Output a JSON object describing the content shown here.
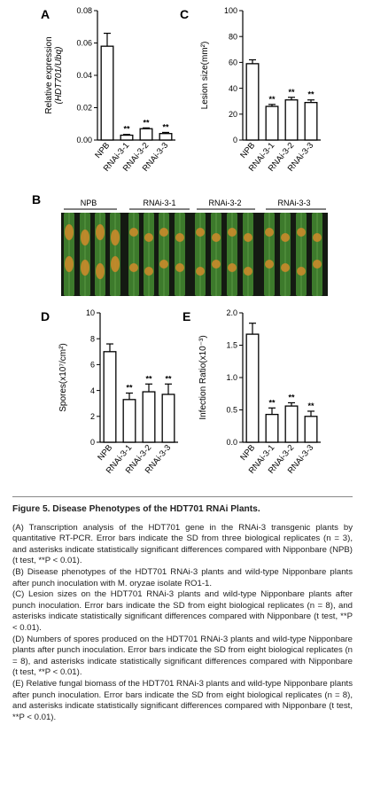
{
  "figure": {
    "panels": {
      "A": "A",
      "B": "B",
      "C": "C",
      "D": "D",
      "E": "E"
    },
    "photo_groups": [
      "NPB",
      "RNAi-3-1",
      "RNAi-3-2",
      "RNAi-3-3"
    ],
    "colors": {
      "bar_fill": "#ffffff",
      "bar_stroke": "#000000",
      "leaf_green": "#3d7a2c",
      "lesion": "#c98a2a"
    }
  },
  "chart_data": [
    {
      "id": "A",
      "type": "bar",
      "categories": [
        "NPB",
        "RNAi-3-1",
        "RNAi-3-2",
        "RNAi-3-3"
      ],
      "values": [
        0.058,
        0.003,
        0.007,
        0.004
      ],
      "errors": [
        0.008,
        0.0005,
        0.0005,
        0.0007
      ],
      "significance": [
        "",
        "**",
        "**",
        "**"
      ],
      "ylabel_line1": "Relative expression",
      "ylabel_line2": "(HDT701/Ubq)",
      "ylim": [
        0,
        0.08
      ],
      "yticks": [
        "0.00",
        "0.02",
        "0.04",
        "0.06",
        "0.08"
      ],
      "ytick_values": [
        0,
        0.02,
        0.04,
        0.06,
        0.08
      ]
    },
    {
      "id": "C",
      "type": "bar",
      "categories": [
        "NPB",
        "RNAi-3-1",
        "RNAi-3-2",
        "RNAi-3-3"
      ],
      "values": [
        59,
        26,
        31,
        29
      ],
      "errors": [
        3,
        1.5,
        2,
        2
      ],
      "significance": [
        "",
        "**",
        "**",
        "**"
      ],
      "ylabel_line1": "Lesion size(mm²)",
      "ylim": [
        0,
        100
      ],
      "yticks": [
        "0",
        "20",
        "40",
        "60",
        "80",
        "100"
      ],
      "ytick_values": [
        0,
        20,
        40,
        60,
        80,
        100
      ]
    },
    {
      "id": "D",
      "type": "bar",
      "categories": [
        "NPB",
        "RNAi-3-1",
        "RNAi-3-2",
        "RNAi-3-3"
      ],
      "values": [
        7.0,
        3.3,
        3.9,
        3.7
      ],
      "errors": [
        0.6,
        0.5,
        0.6,
        0.8
      ],
      "significance": [
        "",
        "**",
        "**",
        "**"
      ],
      "ylabel_line1": "Spores(x10⁷/cm²)",
      "ylim": [
        0,
        10
      ],
      "yticks": [
        "0",
        "2",
        "4",
        "6",
        "8",
        "10"
      ],
      "ytick_values": [
        0,
        2,
        4,
        6,
        8,
        10
      ]
    },
    {
      "id": "E",
      "type": "bar",
      "categories": [
        "NPB",
        "RNAi-3-1",
        "RNAi-3-2",
        "RNAi-3-3"
      ],
      "values": [
        1.67,
        0.43,
        0.56,
        0.4
      ],
      "errors": [
        0.17,
        0.1,
        0.05,
        0.08
      ],
      "significance": [
        "",
        "**",
        "**",
        "**"
      ],
      "ylabel_line1": "Infection Ratio(x10⁻³)",
      "ylim": [
        0,
        2.0
      ],
      "yticks": [
        "0.0",
        "0.5",
        "1.0",
        "1.5",
        "2.0"
      ],
      "ytick_values": [
        0,
        0.5,
        1.0,
        1.5,
        2.0
      ]
    }
  ],
  "caption": {
    "title": "Figure 5. Disease Phenotypes of the HDT701 RNAi Plants.",
    "A": "(A) Transcription analysis of the HDT701 gene in the RNAi-3 transgenic plants by quantitative RT-PCR. Error bars indicate the SD from three biological replicates (n = 3), and asterisks indicate statistically significant differences compared with Nipponbare (NPB) (t test, **P < 0.01).",
    "B": "(B) Disease phenotypes of the HDT701 RNAi-3 plants and wild-type Nipponbare plants after punch inoculation with M. oryzae isolate RO1-1.",
    "C": "(C) Lesion sizes on the HDT701 RNAi-3 plants and wild-type Nipponbare plants after punch inoculation. Error bars indicate the SD from eight biological replicates (n = 8), and asterisks indicate statistically significant differences compared with Nipponbare (t test, **P < 0.01).",
    "D": "(D) Numbers of spores produced on the HDT701 RNAi-3 plants and wild-type Nipponbare plants after punch inoculation. Error bars indicate the SD from eight biological replicates (n = 8), and asterisks indicate statistically significant differences compared with Nipponbare (t test, **P < 0.01).",
    "E": "(E) Relative fungal biomass of the HDT701 RNAi-3 plants and wild-type Nipponbare plants after punch inoculation. Error bars indicate the SD from eight biological replicates (n = 8), and asterisks indicate statistically significant differences compared with Nipponbare (t test, **P < 0.01)."
  }
}
